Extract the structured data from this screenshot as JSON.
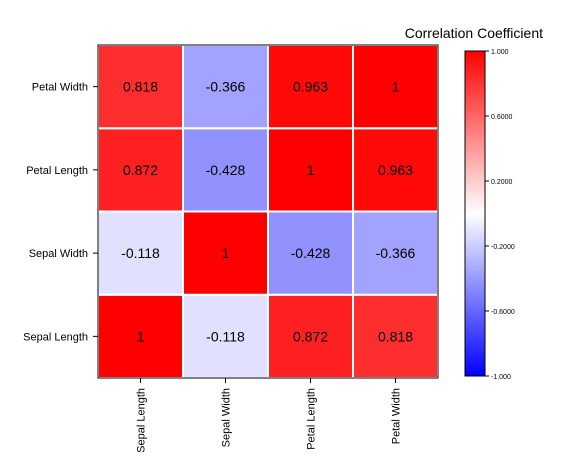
{
  "chart_data": {
    "type": "heatmap",
    "title": "",
    "xlabel": "",
    "ylabel": "",
    "x_categories": [
      "Sepal Length",
      "Sepal Width",
      "Petal Length",
      "Petal Width"
    ],
    "y_categories_bottom_to_top": [
      "Sepal Length",
      "Sepal Width",
      "Petal Length",
      "Petal Width"
    ],
    "matrix_rows_bottom_to_top": [
      [
        1,
        -0.118,
        0.872,
        0.818
      ],
      [
        -0.118,
        1,
        -0.428,
        -0.366
      ],
      [
        0.872,
        -0.428,
        1,
        0.963
      ],
      [
        0.818,
        -0.366,
        0.963,
        1
      ]
    ],
    "cell_labels_rows_bottom_to_top": [
      [
        "1",
        "-0.118",
        "0.872",
        "0.818"
      ],
      [
        "-0.118",
        "1",
        "-0.428",
        "-0.366"
      ],
      [
        "0.872",
        "-0.428",
        "1",
        "0.963"
      ],
      [
        "0.818",
        "-0.366",
        "0.963",
        "1"
      ]
    ],
    "colorbar": {
      "title": "Correlation Coefficient",
      "range": [
        -1,
        1
      ],
      "tick_values": [
        1,
        0.6,
        0.2,
        -0.2,
        -0.6,
        -1
      ],
      "tick_labels": [
        "1.000",
        "0.6000",
        "0.2000",
        "-0.2000",
        "-0.6000",
        "-1.000"
      ],
      "colors": {
        "low": "#0000ff",
        "mid": "#ffffff",
        "high": "#ff0000"
      },
      "placement": "right"
    },
    "grid": false,
    "cell_border_color": "#ffffff"
  }
}
